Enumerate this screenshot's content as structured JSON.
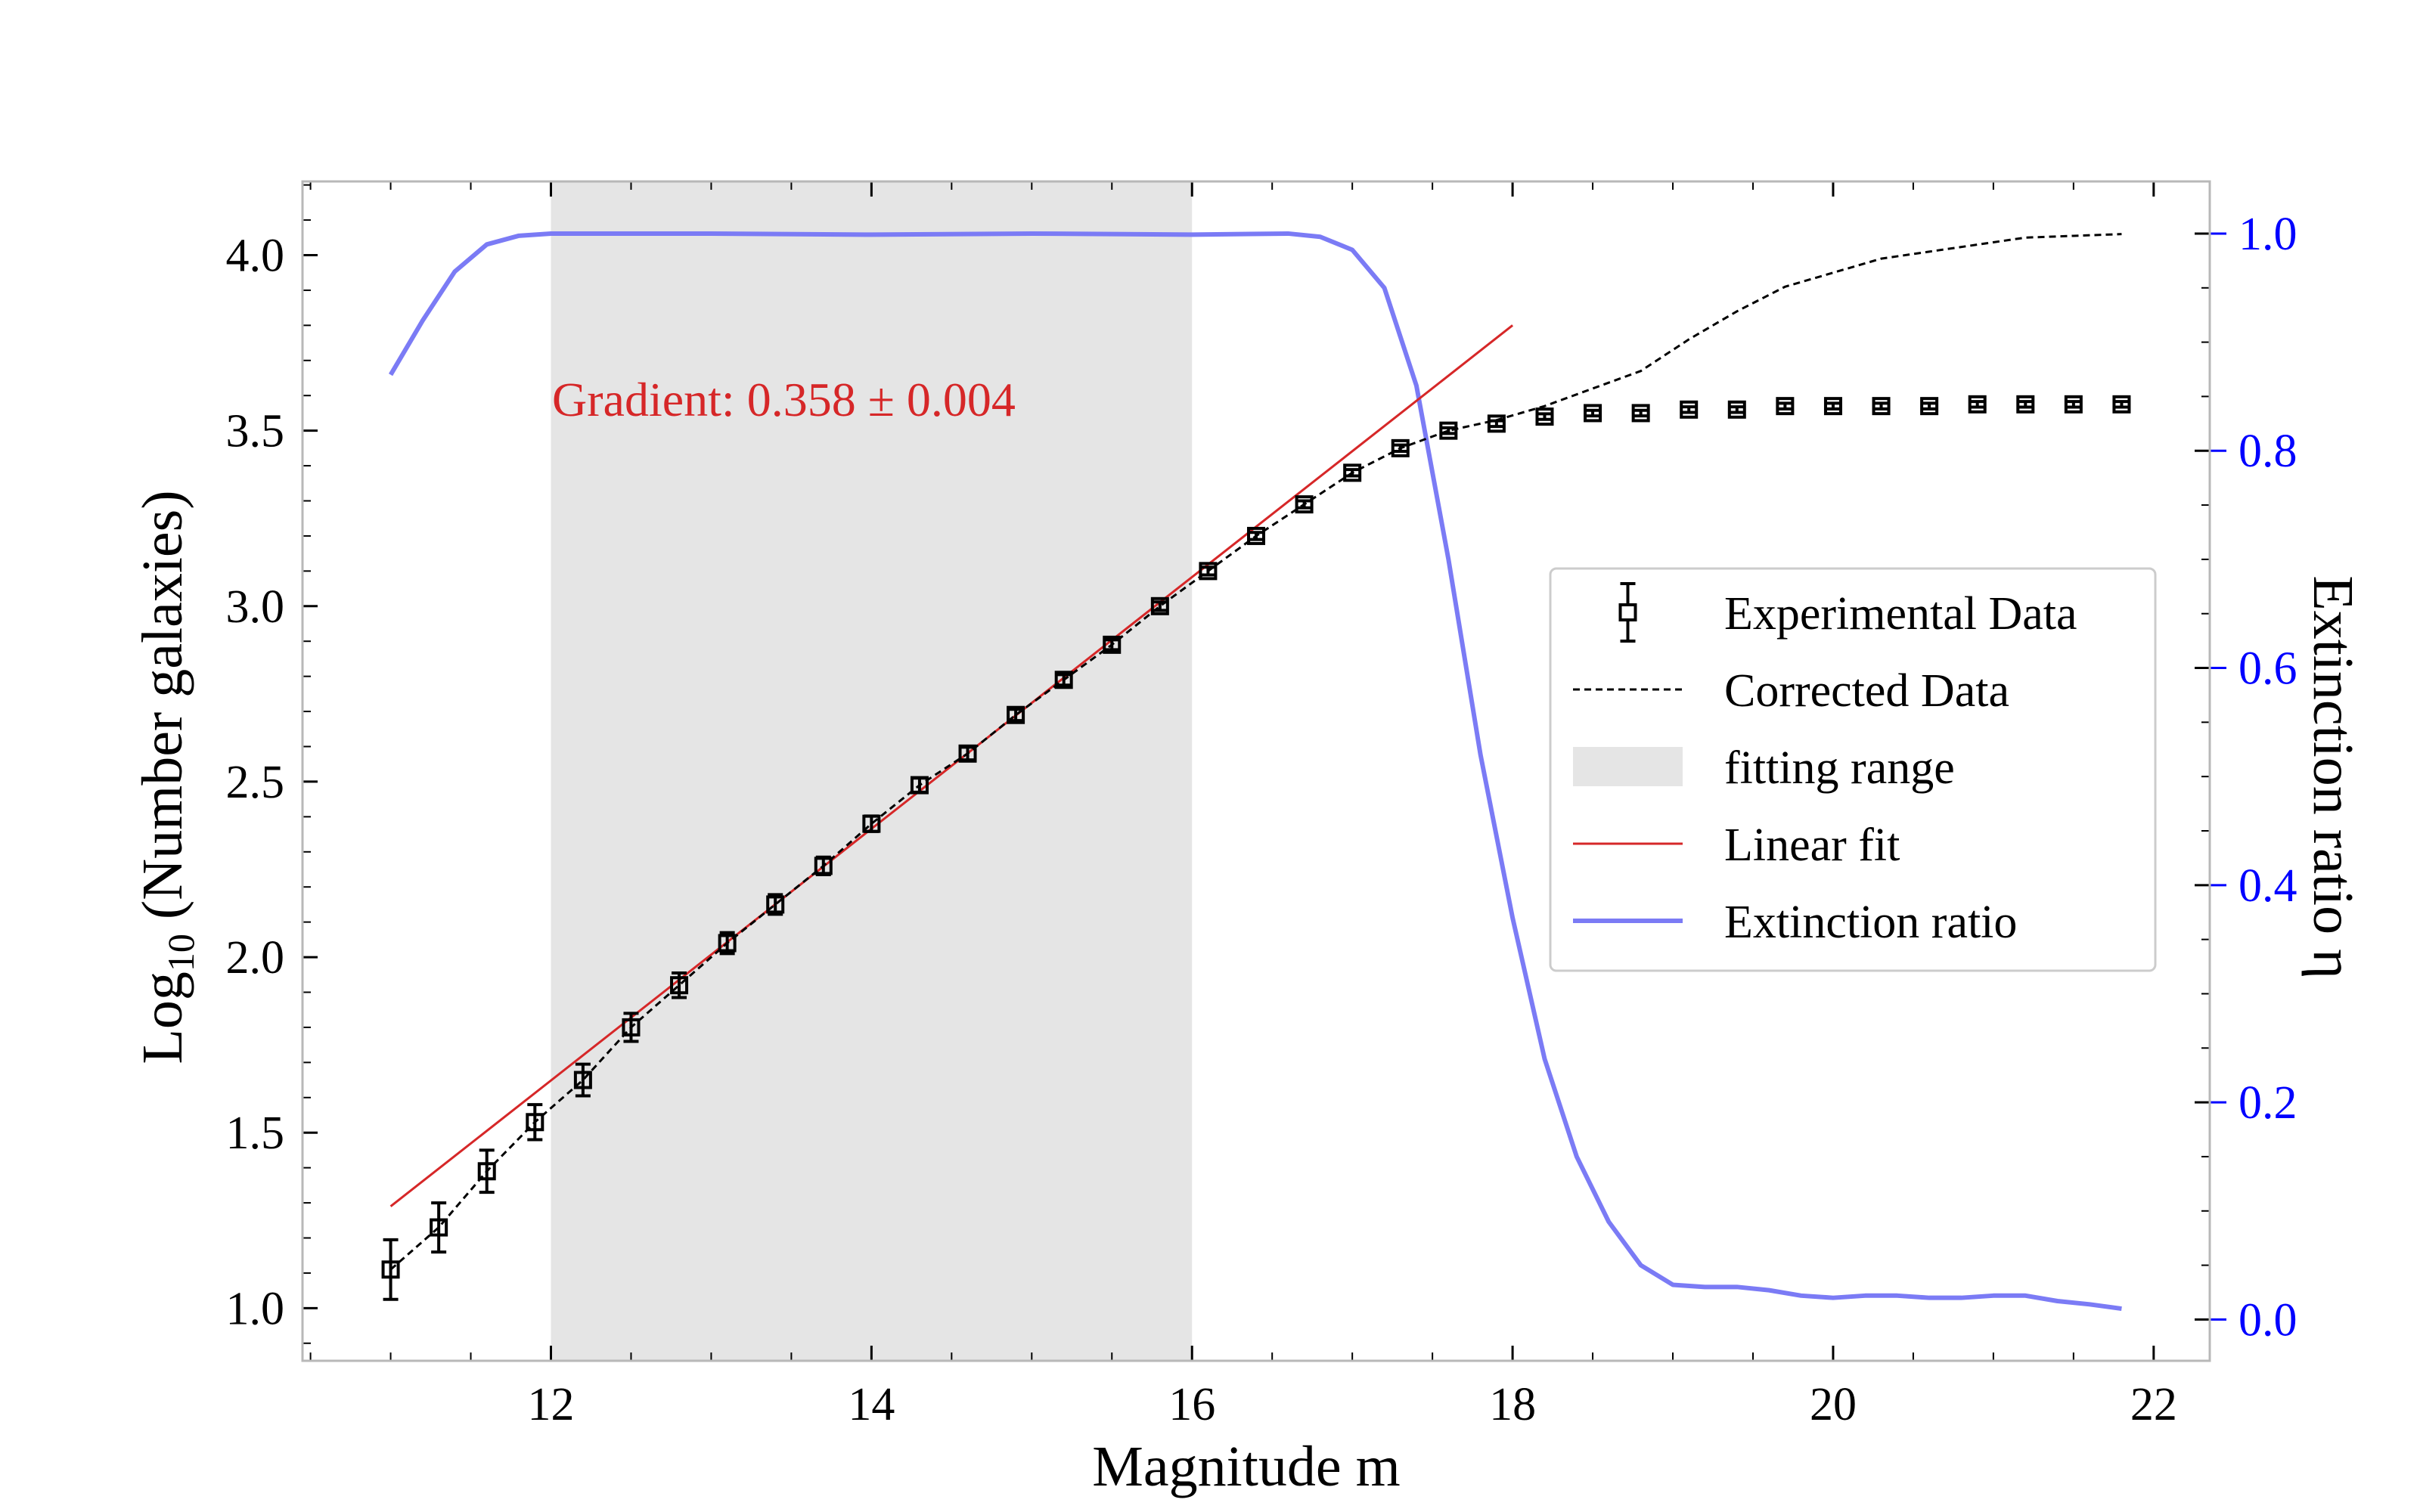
{
  "chart_data": {
    "type": "line",
    "xlabel": "Magnitude m",
    "ylabel": {
      "pre": "Log",
      "sub": "10",
      "post": " (Number galaxies)"
    },
    "y2label": "Extinction ratio η",
    "xlim": [
      10.45,
      22.35
    ],
    "ylim": [
      0.85,
      4.21
    ],
    "y2lim": [
      -0.038,
      1.048
    ],
    "xticks": [
      12,
      14,
      16,
      18,
      20,
      22
    ],
    "yticks": [
      1.0,
      1.5,
      2.0,
      2.5,
      3.0,
      3.5,
      4.0
    ],
    "y2ticks": [
      0.0,
      0.2,
      0.4,
      0.6,
      0.8,
      1.0
    ],
    "fitting_range": [
      12,
      16
    ],
    "annotation": "Gradient: 0.358 ± 0.004",
    "colors": {
      "data": "#000000",
      "fit": "#d62728",
      "extinction": "#7b7bf5",
      "range": "#e5e5e5",
      "y2axis": "#0000ff"
    },
    "legend": {
      "location": "center-right",
      "entries": [
        "Experimental Data",
        "Corrected Data",
        "fitting range",
        "Linear fit",
        "Extinction ratio"
      ]
    },
    "series": [
      {
        "name": "Experimental Data",
        "x": [
          11.0,
          11.3,
          11.6,
          11.9,
          12.2,
          12.5,
          12.8,
          13.1,
          13.4,
          13.7,
          14.0,
          14.3,
          14.6,
          14.9,
          15.2,
          15.5,
          15.8,
          16.1,
          16.4,
          16.7,
          17.0,
          17.3,
          17.6,
          17.9,
          18.2,
          18.5,
          18.8,
          19.1,
          19.4,
          19.7,
          20.0,
          20.3,
          20.6,
          20.9,
          21.2,
          21.5,
          21.8
        ],
        "y": [
          1.11,
          1.23,
          1.39,
          1.53,
          1.65,
          1.8,
          1.92,
          2.04,
          2.15,
          2.26,
          2.38,
          2.49,
          2.58,
          2.69,
          2.79,
          2.89,
          3.0,
          3.1,
          3.2,
          3.29,
          3.38,
          3.45,
          3.5,
          3.52,
          3.54,
          3.55,
          3.55,
          3.56,
          3.56,
          3.57,
          3.57,
          3.57,
          3.57,
          3.575,
          3.575,
          3.575,
          3.575
        ],
        "yerr": [
          0.085,
          0.07,
          0.06,
          0.05,
          0.045,
          0.04,
          0.035,
          0.03,
          0.028,
          0.025,
          0.022,
          0.02,
          0.018,
          0.016,
          0.015,
          0.014,
          0.012,
          0.011,
          0.01,
          0.01,
          0.009,
          0.009,
          0.008,
          0.008,
          0.008,
          0.008,
          0.008,
          0.008,
          0.008,
          0.008,
          0.008,
          0.008,
          0.008,
          0.008,
          0.008,
          0.008,
          0.008
        ]
      },
      {
        "name": "Corrected Data",
        "x": [
          11.0,
          11.3,
          11.6,
          11.9,
          12.2,
          12.5,
          12.8,
          13.1,
          13.4,
          13.7,
          14.0,
          14.3,
          14.6,
          14.9,
          15.2,
          15.5,
          15.8,
          16.1,
          16.4,
          16.7,
          17.0,
          17.3,
          17.6,
          17.9,
          18.2,
          18.5,
          18.8,
          19.1,
          19.4,
          19.7,
          20.0,
          20.3,
          20.6,
          20.9,
          21.2,
          21.5,
          21.8
        ],
        "y": [
          1.11,
          1.23,
          1.39,
          1.53,
          1.65,
          1.8,
          1.92,
          2.04,
          2.15,
          2.26,
          2.38,
          2.49,
          2.58,
          2.69,
          2.79,
          2.89,
          3.0,
          3.1,
          3.2,
          3.29,
          3.38,
          3.45,
          3.5,
          3.53,
          3.57,
          3.62,
          3.67,
          3.76,
          3.84,
          3.91,
          3.95,
          3.99,
          4.01,
          4.03,
          4.05,
          4.055,
          4.06
        ]
      },
      {
        "name": "Linear fit",
        "x": [
          11.0,
          18.0
        ],
        "y": [
          1.29,
          3.8
        ]
      },
      {
        "name": "Extinction ratio",
        "axis": "right",
        "x": [
          11.0,
          11.2,
          11.4,
          11.6,
          11.8,
          12.0,
          12.5,
          13.0,
          14.0,
          15.0,
          16.0,
          16.6,
          16.8,
          17.0,
          17.2,
          17.4,
          17.6,
          17.8,
          18.0,
          18.2,
          18.4,
          18.6,
          18.8,
          19.0,
          19.2,
          19.4,
          19.6,
          19.8,
          20.0,
          20.2,
          20.4,
          20.6,
          20.8,
          21.0,
          21.2,
          21.4,
          21.6,
          21.8
        ],
        "y": [
          0.87,
          0.92,
          0.965,
          0.99,
          0.998,
          1.0,
          1.0,
          1.0,
          0.999,
          1.0,
          0.999,
          1.0,
          0.997,
          0.985,
          0.95,
          0.86,
          0.7,
          0.52,
          0.37,
          0.24,
          0.15,
          0.09,
          0.05,
          0.032,
          0.03,
          0.03,
          0.027,
          0.022,
          0.02,
          0.022,
          0.022,
          0.02,
          0.02,
          0.022,
          0.022,
          0.017,
          0.014,
          0.01
        ]
      }
    ]
  }
}
